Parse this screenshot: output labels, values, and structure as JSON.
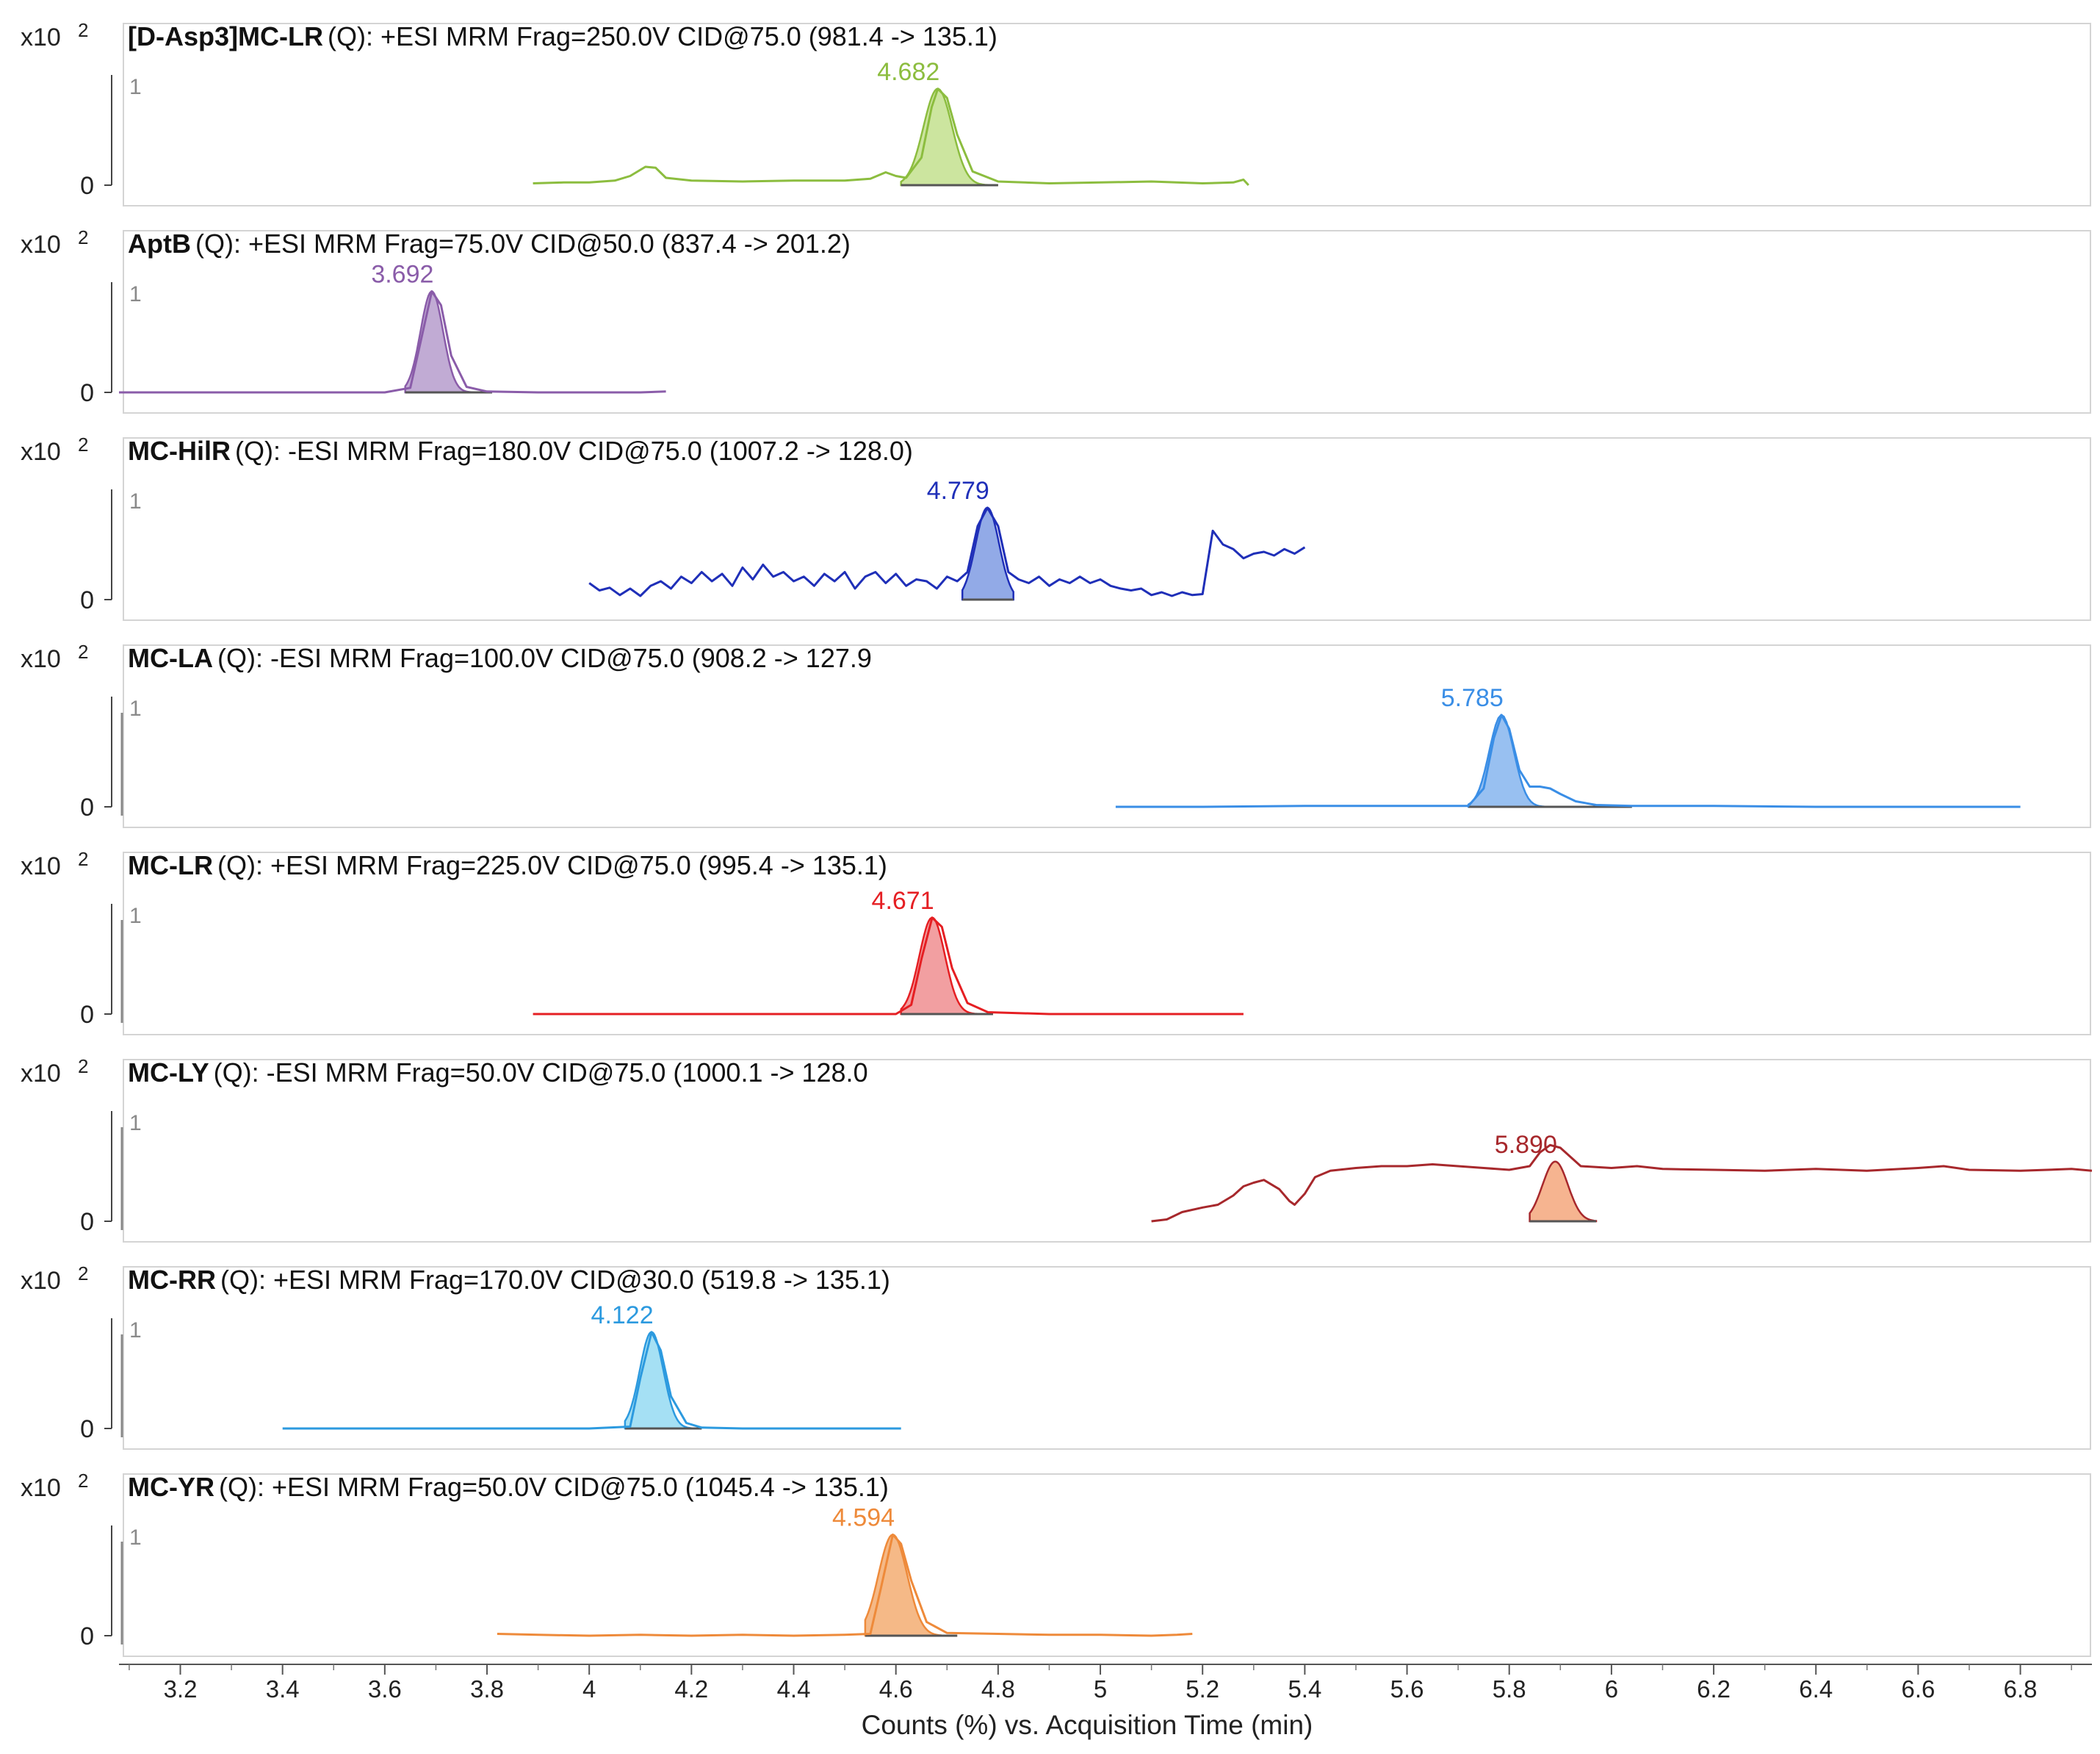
{
  "chart_data": {
    "type": "line",
    "xlabel": "Counts (%) vs. Acquisition Time (min)",
    "xlim": [
      3.08,
      6.94
    ],
    "xticks": [
      3.2,
      3.4,
      3.6,
      3.8,
      4,
      4.2,
      4.4,
      4.6,
      4.8,
      5,
      5.2,
      5.4,
      5.6,
      5.8,
      6,
      6.2,
      6.4,
      6.6,
      6.8
    ],
    "y_multiplier": "x10",
    "y_exponent": "2",
    "yticks": [
      "0",
      "1"
    ],
    "ylim": [
      0,
      1.2
    ],
    "panels": [
      {
        "compound": "[D-Asp3]MC-LR",
        "info": "(Q): +ESI MRM Frag=250.0V  CID@75.0  (981.4  -> 135.1)",
        "color": "#8cbd3f",
        "fill": "#c3e08e",
        "peak_label": "4.682",
        "peak": {
          "rt": 4.682,
          "height": 1.05,
          "sigma": 0.028,
          "start": 4.61,
          "end": 4.8
        },
        "points": [
          [
            3.89,
            0.02
          ],
          [
            3.95,
            0.03
          ],
          [
            4.0,
            0.03
          ],
          [
            4.05,
            0.05
          ],
          [
            4.08,
            0.1
          ],
          [
            4.11,
            0.2
          ],
          [
            4.13,
            0.19
          ],
          [
            4.15,
            0.08
          ],
          [
            4.2,
            0.05
          ],
          [
            4.3,
            0.04
          ],
          [
            4.4,
            0.05
          ],
          [
            4.5,
            0.05
          ],
          [
            4.55,
            0.07
          ],
          [
            4.58,
            0.14
          ],
          [
            4.6,
            0.1
          ],
          [
            4.62,
            0.08
          ],
          [
            4.65,
            0.3
          ],
          [
            4.67,
            0.85
          ],
          [
            4.682,
            1.05
          ],
          [
            4.7,
            0.95
          ],
          [
            4.72,
            0.55
          ],
          [
            4.75,
            0.15
          ],
          [
            4.8,
            0.04
          ],
          [
            4.9,
            0.02
          ],
          [
            5.0,
            0.03
          ],
          [
            5.1,
            0.04
          ],
          [
            5.2,
            0.02
          ],
          [
            5.26,
            0.03
          ],
          [
            5.28,
            0.06
          ],
          [
            5.29,
            0.0
          ]
        ]
      },
      {
        "compound": "AptB",
        "info": "(Q): +ESI MRM Frag=75.0V  CID@50.0  (837.4  -> 201.2)",
        "color": "#8a5ca9",
        "fill": "#b69ccd",
        "peak_label": "3.692",
        "peak": {
          "rt": 3.692,
          "height": 1.1,
          "sigma": 0.022,
          "start": 3.64,
          "end": 3.81
        },
        "points": [
          [
            3.08,
            0.0
          ],
          [
            3.2,
            0.0
          ],
          [
            3.3,
            0.0
          ],
          [
            3.4,
            0.0
          ],
          [
            3.5,
            0.0
          ],
          [
            3.6,
            0.0
          ],
          [
            3.65,
            0.05
          ],
          [
            3.67,
            0.55
          ],
          [
            3.692,
            1.1
          ],
          [
            3.71,
            0.95
          ],
          [
            3.73,
            0.4
          ],
          [
            3.76,
            0.06
          ],
          [
            3.8,
            0.01
          ],
          [
            3.9,
            0.0
          ],
          [
            4.0,
            0.0
          ],
          [
            4.1,
            0.0
          ],
          [
            4.15,
            0.01
          ]
        ]
      },
      {
        "compound": "MC-HilR",
        "info": "(Q): -ESI MRM Frag=180.0V  CID@75.0  (1007.2  -> 128.0)",
        "color": "#1f2fb8",
        "fill": "#7f9be3",
        "peak_label": "4.779",
        "peak": {
          "rt": 4.779,
          "height": 1.0,
          "sigma": 0.023,
          "start": 4.73,
          "end": 4.83
        },
        "points": [
          [
            4.0,
            0.18
          ],
          [
            4.02,
            0.1
          ],
          [
            4.04,
            0.13
          ],
          [
            4.06,
            0.05
          ],
          [
            4.08,
            0.12
          ],
          [
            4.1,
            0.04
          ],
          [
            4.12,
            0.15
          ],
          [
            4.14,
            0.2
          ],
          [
            4.16,
            0.12
          ],
          [
            4.18,
            0.25
          ],
          [
            4.2,
            0.18
          ],
          [
            4.22,
            0.3
          ],
          [
            4.24,
            0.2
          ],
          [
            4.26,
            0.28
          ],
          [
            4.28,
            0.15
          ],
          [
            4.3,
            0.35
          ],
          [
            4.32,
            0.22
          ],
          [
            4.34,
            0.38
          ],
          [
            4.36,
            0.25
          ],
          [
            4.38,
            0.3
          ],
          [
            4.4,
            0.2
          ],
          [
            4.42,
            0.25
          ],
          [
            4.44,
            0.15
          ],
          [
            4.46,
            0.28
          ],
          [
            4.48,
            0.2
          ],
          [
            4.5,
            0.3
          ],
          [
            4.52,
            0.12
          ],
          [
            4.54,
            0.25
          ],
          [
            4.56,
            0.3
          ],
          [
            4.58,
            0.18
          ],
          [
            4.6,
            0.28
          ],
          [
            4.62,
            0.15
          ],
          [
            4.64,
            0.22
          ],
          [
            4.66,
            0.2
          ],
          [
            4.68,
            0.12
          ],
          [
            4.7,
            0.25
          ],
          [
            4.72,
            0.2
          ],
          [
            4.74,
            0.3
          ],
          [
            4.76,
            0.8
          ],
          [
            4.779,
            1.0
          ],
          [
            4.8,
            0.8
          ],
          [
            4.82,
            0.3
          ],
          [
            4.84,
            0.22
          ],
          [
            4.86,
            0.18
          ],
          [
            4.88,
            0.25
          ],
          [
            4.9,
            0.15
          ],
          [
            4.92,
            0.22
          ],
          [
            4.94,
            0.18
          ],
          [
            4.96,
            0.25
          ],
          [
            4.98,
            0.18
          ],
          [
            5.0,
            0.22
          ],
          [
            5.02,
            0.15
          ],
          [
            5.04,
            0.12
          ],
          [
            5.06,
            0.1
          ],
          [
            5.08,
            0.12
          ],
          [
            5.1,
            0.05
          ],
          [
            5.12,
            0.08
          ],
          [
            5.14,
            0.04
          ],
          [
            5.16,
            0.08
          ],
          [
            5.18,
            0.05
          ],
          [
            5.2,
            0.06
          ],
          [
            5.22,
            0.75
          ],
          [
            5.24,
            0.6
          ],
          [
            5.26,
            0.55
          ],
          [
            5.28,
            0.45
          ],
          [
            5.3,
            0.5
          ],
          [
            5.32,
            0.52
          ],
          [
            5.34,
            0.48
          ],
          [
            5.36,
            0.55
          ],
          [
            5.38,
            0.5
          ],
          [
            5.4,
            0.57
          ]
        ]
      },
      {
        "compound": "MC-LA",
        "info": "(Q): -ESI MRM Frag=100.0V  CID@75.0  (908.2  -> 127.9",
        "color": "#3a8ee6",
        "fill": "#86b5ee",
        "peak_label": "5.785",
        "peak": {
          "rt": 5.785,
          "height": 1.0,
          "sigma": 0.024,
          "start": 5.72,
          "end": 6.04
        },
        "points": [
          [
            5.03,
            0.0
          ],
          [
            5.2,
            0.0
          ],
          [
            5.4,
            0.01
          ],
          [
            5.6,
            0.01
          ],
          [
            5.72,
            0.01
          ],
          [
            5.75,
            0.2
          ],
          [
            5.77,
            0.75
          ],
          [
            5.785,
            1.0
          ],
          [
            5.8,
            0.85
          ],
          [
            5.82,
            0.4
          ],
          [
            5.84,
            0.22
          ],
          [
            5.86,
            0.22
          ],
          [
            5.88,
            0.2
          ],
          [
            5.9,
            0.14
          ],
          [
            5.93,
            0.06
          ],
          [
            5.97,
            0.02
          ],
          [
            6.04,
            0.01
          ],
          [
            6.2,
            0.01
          ],
          [
            6.4,
            0.0
          ],
          [
            6.6,
            0.0
          ],
          [
            6.8,
            0.0
          ]
        ]
      },
      {
        "compound": "MC-LR",
        "info": "(Q): +ESI MRM Frag=225.0V  CID@75.0  (995.4  -> 135.1)",
        "color": "#e51f23",
        "fill": "#f08e90",
        "peak_label": "4.671",
        "peak": {
          "rt": 4.671,
          "height": 1.05,
          "sigma": 0.025,
          "start": 4.61,
          "end": 4.79
        },
        "points": [
          [
            3.89,
            0.0
          ],
          [
            4.0,
            0.0
          ],
          [
            4.2,
            0.0
          ],
          [
            4.4,
            0.0
          ],
          [
            4.6,
            0.0
          ],
          [
            4.63,
            0.1
          ],
          [
            4.65,
            0.6
          ],
          [
            4.671,
            1.05
          ],
          [
            4.69,
            0.95
          ],
          [
            4.71,
            0.5
          ],
          [
            4.74,
            0.12
          ],
          [
            4.78,
            0.02
          ],
          [
            4.9,
            0.0
          ],
          [
            5.0,
            0.0
          ],
          [
            5.1,
            0.0
          ],
          [
            5.2,
            0.0
          ],
          [
            5.28,
            0.0
          ]
        ]
      },
      {
        "compound": "MC-LY",
        "info": "(Q): -ESI MRM Frag=50.0V  CID@75.0  (1000.1  -> 128.0",
        "color": "#a7282c",
        "fill": "#f4a77d",
        "peak_label": "5.890",
        "peak": {
          "rt": 5.89,
          "height": 0.65,
          "sigma": 0.025,
          "start": 5.84,
          "end": 5.97
        },
        "points": [
          [
            5.1,
            0.0
          ],
          [
            5.13,
            0.02
          ],
          [
            5.16,
            0.1
          ],
          [
            5.2,
            0.15
          ],
          [
            5.23,
            0.18
          ],
          [
            5.26,
            0.28
          ],
          [
            5.28,
            0.38
          ],
          [
            5.3,
            0.42
          ],
          [
            5.32,
            0.45
          ],
          [
            5.35,
            0.35
          ],
          [
            5.37,
            0.22
          ],
          [
            5.38,
            0.18
          ],
          [
            5.4,
            0.3
          ],
          [
            5.42,
            0.48
          ],
          [
            5.45,
            0.55
          ],
          [
            5.5,
            0.58
          ],
          [
            5.55,
            0.6
          ],
          [
            5.6,
            0.6
          ],
          [
            5.65,
            0.62
          ],
          [
            5.7,
            0.6
          ],
          [
            5.75,
            0.58
          ],
          [
            5.8,
            0.56
          ],
          [
            5.84,
            0.6
          ],
          [
            5.86,
            0.75
          ],
          [
            5.88,
            0.83
          ],
          [
            5.9,
            0.8
          ],
          [
            5.92,
            0.7
          ],
          [
            5.94,
            0.6
          ],
          [
            6.0,
            0.58
          ],
          [
            6.05,
            0.6
          ],
          [
            6.1,
            0.57
          ],
          [
            6.2,
            0.56
          ],
          [
            6.3,
            0.55
          ],
          [
            6.4,
            0.57
          ],
          [
            6.5,
            0.55
          ],
          [
            6.6,
            0.58
          ],
          [
            6.65,
            0.6
          ],
          [
            6.7,
            0.56
          ],
          [
            6.8,
            0.55
          ],
          [
            6.9,
            0.57
          ],
          [
            6.94,
            0.55
          ]
        ]
      },
      {
        "compound": "MC-RR",
        "info": "(Q): +ESI MRM Frag=170.0V  CID@30.0  (519.8  -> 135.1)",
        "color": "#2c9adf",
        "fill": "#95daf2",
        "peak_label": "4.122",
        "peak": {
          "rt": 4.122,
          "height": 1.05,
          "sigma": 0.023,
          "start": 4.07,
          "end": 4.22
        },
        "points": [
          [
            3.4,
            0.0
          ],
          [
            3.6,
            0.0
          ],
          [
            3.8,
            0.0
          ],
          [
            4.0,
            0.0
          ],
          [
            4.08,
            0.02
          ],
          [
            4.1,
            0.55
          ],
          [
            4.122,
            1.05
          ],
          [
            4.14,
            0.85
          ],
          [
            4.16,
            0.35
          ],
          [
            4.19,
            0.06
          ],
          [
            4.22,
            0.01
          ],
          [
            4.3,
            0.0
          ],
          [
            4.4,
            0.0
          ],
          [
            4.5,
            0.0
          ],
          [
            4.61,
            0.0
          ]
        ]
      },
      {
        "compound": "MC-YR",
        "info": "(Q): +ESI MRM Frag=50.0V  CID@75.0  (1045.4  -> 135.1)",
        "color": "#ee8a3a",
        "fill": "#f3ad72",
        "peak_label": "4.594",
        "peak": {
          "rt": 4.594,
          "height": 1.1,
          "sigma": 0.028,
          "start": 4.54,
          "end": 4.72
        },
        "points": [
          [
            3.82,
            0.02
          ],
          [
            3.9,
            0.01
          ],
          [
            4.0,
            0.0
          ],
          [
            4.1,
            0.01
          ],
          [
            4.2,
            0.0
          ],
          [
            4.3,
            0.01
          ],
          [
            4.4,
            0.0
          ],
          [
            4.5,
            0.01
          ],
          [
            4.55,
            0.02
          ],
          [
            4.57,
            0.5
          ],
          [
            4.594,
            1.1
          ],
          [
            4.61,
            1.0
          ],
          [
            4.63,
            0.6
          ],
          [
            4.66,
            0.15
          ],
          [
            4.7,
            0.03
          ],
          [
            4.8,
            0.02
          ],
          [
            4.9,
            0.01
          ],
          [
            5.0,
            0.01
          ],
          [
            5.1,
            0.0
          ],
          [
            5.15,
            0.01
          ],
          [
            5.18,
            0.02
          ]
        ]
      }
    ]
  }
}
